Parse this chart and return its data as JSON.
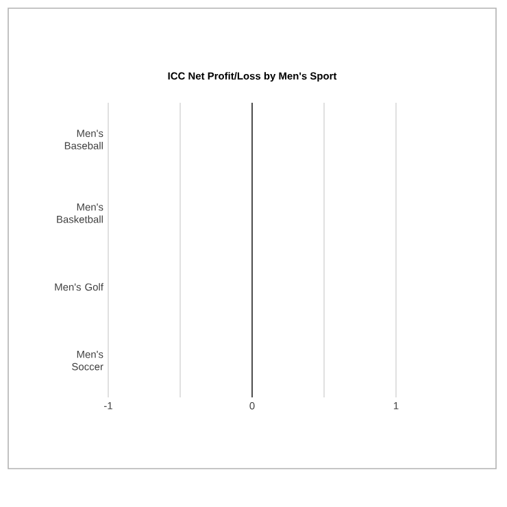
{
  "chart_data": {
    "type": "bar",
    "orientation": "horizontal",
    "title": "ICC Net Profit/Loss by Men's Sport",
    "categories": [
      "Men's Baseball",
      "Men's Basketball",
      "Men's Golf",
      "Men's Soccer"
    ],
    "values": [
      0,
      0,
      0,
      0
    ],
    "xlim": [
      -1,
      1
    ],
    "xticks": [
      -1,
      {
        "value": -0.5,
        "label": null
      },
      0,
      {
        "value": 0.5,
        "label": null
      },
      1
    ],
    "grid": "x"
  }
}
